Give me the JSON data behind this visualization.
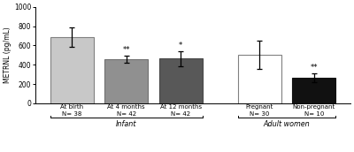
{
  "categories": [
    "At birth\nN= 38",
    "At 4 months\nN= 42",
    "At 12 months\nN= 42",
    "Pregnant\nN= 30",
    "Non-pregnant\nN= 10"
  ],
  "values": [
    685,
    455,
    463,
    505,
    265
  ],
  "errors": [
    100,
    38,
    80,
    145,
    45
  ],
  "bar_colors": [
    "#c8c8c8",
    "#909090",
    "#585858",
    "#ffffff",
    "#111111"
  ],
  "bar_edge_colors": [
    "#808080",
    "#707070",
    "#484848",
    "#808080",
    "#111111"
  ],
  "significance": [
    "",
    "**",
    "*",
    "",
    "**"
  ],
  "ylabel": "METRNL (pg/mL)",
  "ylim": [
    0,
    1000
  ],
  "yticks": [
    0,
    200,
    400,
    600,
    800,
    1000
  ],
  "group_labels": [
    "Infant",
    "Adult women"
  ],
  "background_color": "#ffffff"
}
